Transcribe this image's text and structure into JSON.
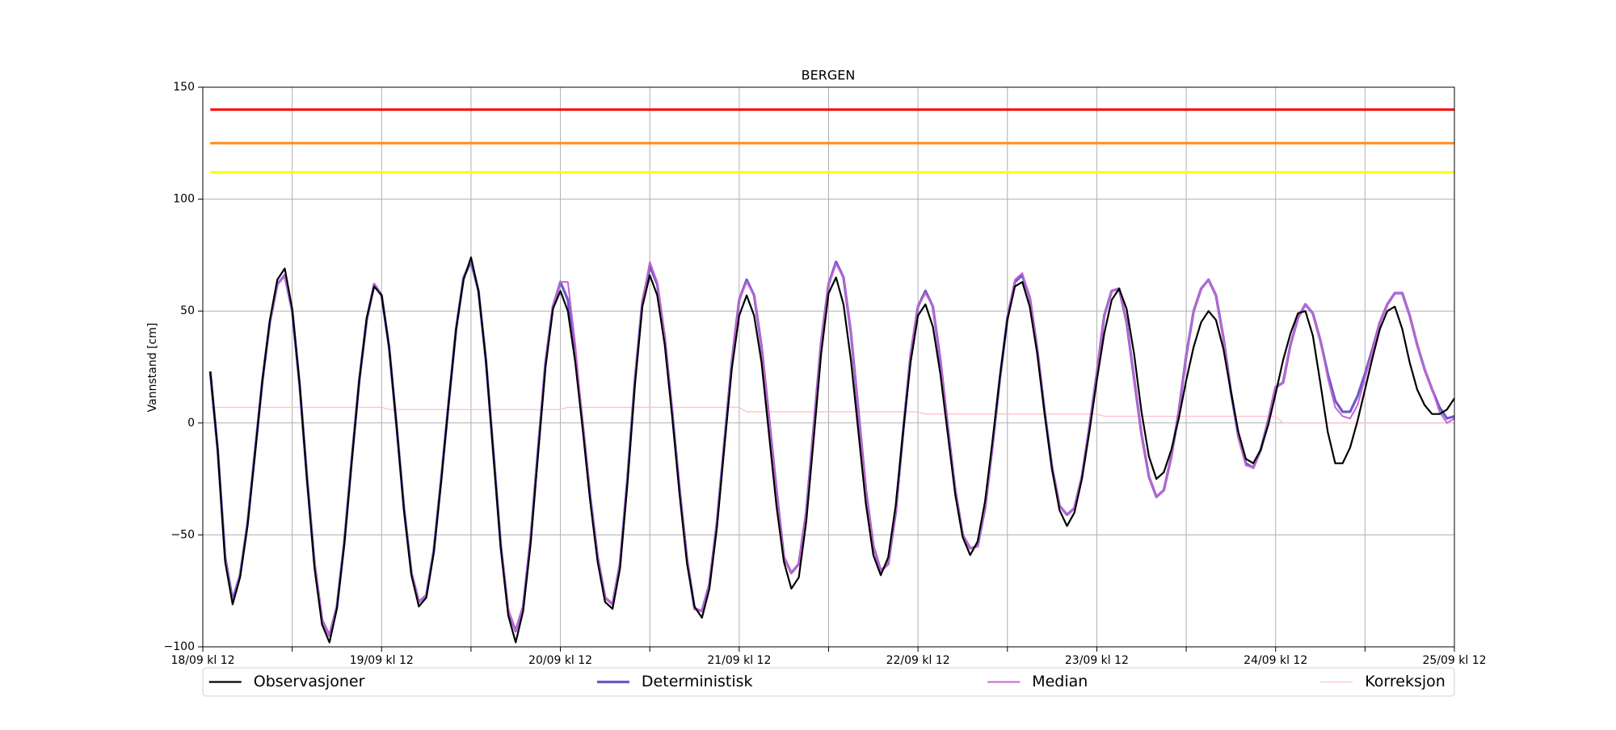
{
  "chart_data": {
    "type": "line",
    "title": "BERGEN",
    "ylabel": "Vannstand [cm]",
    "x": [
      1,
      2,
      3,
      4,
      5,
      6,
      7,
      8,
      9,
      10,
      11,
      12,
      13,
      14,
      15,
      16,
      17,
      18,
      19,
      20,
      21,
      22,
      23,
      24,
      25,
      26,
      27,
      28,
      29,
      30,
      31,
      32,
      33,
      34,
      35,
      36,
      37,
      38,
      39,
      40,
      41,
      42,
      43,
      44,
      45,
      46,
      47,
      48,
      49,
      50,
      51,
      52,
      53,
      54,
      55,
      56,
      57,
      58,
      59,
      60,
      61,
      62,
      63,
      64,
      65,
      66,
      67,
      68,
      69,
      70,
      71,
      72,
      73,
      74,
      75,
      76,
      77,
      78,
      79,
      80,
      81,
      82,
      83,
      84,
      85,
      86,
      87,
      88,
      89,
      90,
      91,
      92,
      93,
      94,
      95,
      96,
      97,
      98,
      99,
      100,
      101,
      102,
      103,
      104,
      105,
      106,
      107,
      108,
      109,
      110,
      111,
      112,
      113,
      114,
      115,
      116,
      117,
      118,
      119,
      120,
      121,
      122,
      123,
      124,
      125,
      126,
      127,
      128,
      129,
      130,
      131,
      132,
      133,
      134,
      135,
      136,
      137,
      138,
      139,
      140,
      141,
      142,
      143,
      144,
      145,
      146,
      147,
      148,
      149,
      150,
      151,
      152,
      153,
      154,
      155,
      156,
      157,
      158,
      159,
      160,
      161,
      162,
      163,
      164,
      165,
      166,
      167,
      168
    ],
    "series": [
      {
        "name": "Observasjoner",
        "color": "#000000",
        "width": 2.2,
        "values": [
          23,
          -12,
          -62,
          -81,
          -69,
          -46,
          -14,
          19,
          46,
          64,
          69,
          51,
          17,
          -26,
          -65,
          -90,
          -98,
          -83,
          -54,
          -17,
          19,
          47,
          61,
          57,
          34,
          -1,
          -39,
          -68,
          -82,
          -78,
          -58,
          -26,
          9,
          42,
          64,
          74,
          59,
          28,
          -14,
          -56,
          -86,
          -98,
          -84,
          -54,
          -14,
          25,
          51,
          59,
          50,
          27,
          -3,
          -35,
          -62,
          -80,
          -83,
          -65,
          -27,
          17,
          52,
          66,
          57,
          35,
          3,
          -32,
          -63,
          -82,
          -87,
          -74,
          -47,
          -11,
          24,
          48,
          57,
          48,
          27,
          -5,
          -37,
          -62,
          -74,
          -69,
          -44,
          -7,
          31,
          58,
          65,
          53,
          28,
          -4,
          -36,
          -59,
          -68,
          -60,
          -37,
          -4,
          27,
          48,
          53,
          43,
          22,
          -5,
          -32,
          -51,
          -59,
          -53,
          -35,
          -8,
          21,
          46,
          61,
          63,
          52,
          31,
          4,
          -21,
          -39,
          -46,
          -40,
          -25,
          -4,
          19,
          40,
          55,
          60,
          51,
          31,
          5,
          -15,
          -25,
          -22,
          -12,
          2,
          19,
          34,
          45,
          50,
          46,
          33,
          14,
          -4,
          -16,
          -18,
          -12,
          -1,
          13,
          28,
          40,
          49,
          50,
          39,
          18,
          -4,
          -18,
          -18,
          -11,
          1,
          15,
          29,
          42,
          50,
          52,
          42,
          27,
          15,
          8,
          4,
          4,
          6,
          11
        ]
      },
      {
        "name": "Deterministisk",
        "color": "#6a5acd",
        "width": 3.2,
        "values": [
          23,
          -12,
          -60,
          -79,
          -68,
          -45,
          -13,
          19,
          45,
          62,
          66,
          50,
          17,
          -25,
          -63,
          -88,
          -95,
          -82,
          -53,
          -16,
          19,
          46,
          62,
          57,
          34,
          -1,
          -38,
          -67,
          -80,
          -77,
          -57,
          -25,
          9,
          42,
          65,
          72,
          59,
          28,
          -13,
          -55,
          -84,
          -93,
          -82,
          -52,
          -12,
          27,
          52,
          63,
          55,
          30,
          -1,
          -33,
          -60,
          -78,
          -81,
          -63,
          -25,
          19,
          54,
          70,
          62,
          38,
          5,
          -30,
          -61,
          -83,
          -84,
          -72,
          -45,
          -9,
          27,
          55,
          64,
          57,
          34,
          2,
          -30,
          -60,
          -67,
          -63,
          -40,
          -2,
          36,
          62,
          72,
          65,
          40,
          5,
          -30,
          -55,
          -66,
          -63,
          -40,
          -4,
          30,
          52,
          59,
          52,
          28,
          -2,
          -30,
          -50,
          -56,
          -55,
          -38,
          -10,
          20,
          47,
          63,
          66,
          56,
          33,
          5,
          -20,
          -37,
          -41,
          -38,
          -24,
          -2,
          22,
          48,
          59,
          60,
          45,
          20,
          -5,
          -24,
          -33,
          -30,
          -15,
          5,
          30,
          50,
          60,
          64,
          57,
          38,
          14,
          -6,
          -18,
          -20,
          -12,
          1,
          16,
          18,
          35,
          47,
          53,
          49,
          37,
          22,
          10,
          5,
          5,
          12,
          22,
          33,
          45,
          53,
          58,
          58,
          48,
          35,
          24,
          15,
          7,
          2,
          3
        ]
      },
      {
        "name": "Median",
        "color": "#c964cf",
        "width": 2,
        "values": [
          23,
          -12,
          -60,
          -80,
          -68,
          -45,
          -13,
          19,
          45,
          62,
          66,
          50,
          17,
          -25,
          -63,
          -88,
          -95,
          -82,
          -53,
          -16,
          19,
          46,
          62,
          57,
          34,
          -1,
          -38,
          -67,
          -80,
          -77,
          -57,
          -25,
          9,
          42,
          65,
          73,
          59,
          28,
          -13,
          -55,
          -83,
          -93,
          -82,
          -52,
          -12,
          27,
          52,
          63,
          63,
          35,
          -1,
          -33,
          -60,
          -78,
          -81,
          -63,
          -25,
          19,
          54,
          72,
          63,
          38,
          5,
          -30,
          -61,
          -83,
          -84,
          -72,
          -45,
          -9,
          27,
          55,
          63,
          57,
          34,
          2,
          -30,
          -60,
          -67,
          -63,
          -40,
          -2,
          36,
          62,
          71,
          65,
          40,
          5,
          -30,
          -55,
          -66,
          -63,
          -40,
          -4,
          30,
          52,
          58,
          52,
          28,
          -2,
          -30,
          -50,
          -56,
          -55,
          -38,
          -10,
          20,
          47,
          64,
          67,
          56,
          33,
          5,
          -20,
          -37,
          -41,
          -38,
          -24,
          -2,
          22,
          48,
          59,
          60,
          45,
          20,
          -5,
          -24,
          -33,
          -30,
          -15,
          5,
          30,
          50,
          60,
          64,
          57,
          38,
          14,
          -6,
          -19,
          -20,
          -12,
          1,
          16,
          18,
          35,
          47,
          53,
          49,
          37,
          20,
          7,
          3,
          2,
          8,
          20,
          32,
          45,
          53,
          58,
          58,
          48,
          35,
          24,
          15,
          5,
          0,
          2
        ]
      },
      {
        "name": "Korreksjon",
        "color": "#ffc0cb",
        "width": 1.3,
        "values": [
          7,
          7,
          7,
          7,
          7,
          7,
          7,
          7,
          7,
          7,
          7,
          7,
          7,
          7,
          7,
          7,
          7,
          7,
          7,
          7,
          7,
          7,
          7,
          7,
          6,
          6,
          6,
          6,
          6,
          6,
          6,
          6,
          6,
          6,
          6,
          6,
          6,
          6,
          6,
          6,
          6,
          6,
          6,
          6,
          6,
          6,
          6,
          6,
          7,
          7,
          7,
          7,
          7,
          7,
          7,
          7,
          7,
          7,
          7,
          7,
          7,
          7,
          7,
          7,
          7,
          7,
          7,
          7,
          7,
          7,
          7,
          7,
          5,
          5,
          5,
          5,
          5,
          5,
          5,
          5,
          5,
          5,
          5,
          5,
          5,
          5,
          5,
          5,
          5,
          5,
          5,
          5,
          5,
          5,
          5,
          5,
          4,
          4,
          4,
          4,
          4,
          4,
          4,
          4,
          4,
          4,
          4,
          4,
          4,
          4,
          4,
          4,
          4,
          4,
          4,
          4,
          4,
          4,
          4,
          4,
          3,
          3,
          3,
          3,
          3,
          3,
          3,
          3,
          3,
          3,
          3,
          3,
          3,
          3,
          3,
          3,
          3,
          3,
          3,
          3,
          3,
          3,
          3,
          3,
          0,
          0,
          0,
          0,
          0,
          0,
          0,
          0,
          0,
          0,
          0,
          0,
          0,
          0,
          0,
          0,
          0,
          0,
          0,
          0,
          0,
          0,
          0,
          0
        ]
      }
    ],
    "thresholds": [
      {
        "value": 140,
        "color": "#ff0000"
      },
      {
        "value": 125,
        "color": "#ff8c1a"
      },
      {
        "value": 112,
        "color": "#ffff00"
      }
    ],
    "xlim": [
      0,
      168
    ],
    "xticks": [
      {
        "value": 0,
        "label": "18/09 kl 12"
      },
      {
        "value": 24,
        "label": "19/09 kl 12"
      },
      {
        "value": 48,
        "label": "20/09 kl 12"
      },
      {
        "value": 72,
        "label": "21/09 kl 12"
      },
      {
        "value": 96,
        "label": "22/09 kl 12"
      },
      {
        "value": 120,
        "label": "23/09 kl 12"
      },
      {
        "value": 144,
        "label": "24/09 kl 12"
      },
      {
        "value": 168,
        "label": "25/09 kl 12"
      }
    ],
    "xminorticks": [
      12,
      36,
      60,
      84,
      108,
      132,
      156
    ],
    "ylim": [
      -100,
      150
    ],
    "yticks": [
      {
        "value": -100,
        "label": "−100"
      },
      {
        "value": -50,
        "label": "−50"
      },
      0,
      50,
      100,
      150
    ],
    "grid": true,
    "legend": "bottom"
  }
}
